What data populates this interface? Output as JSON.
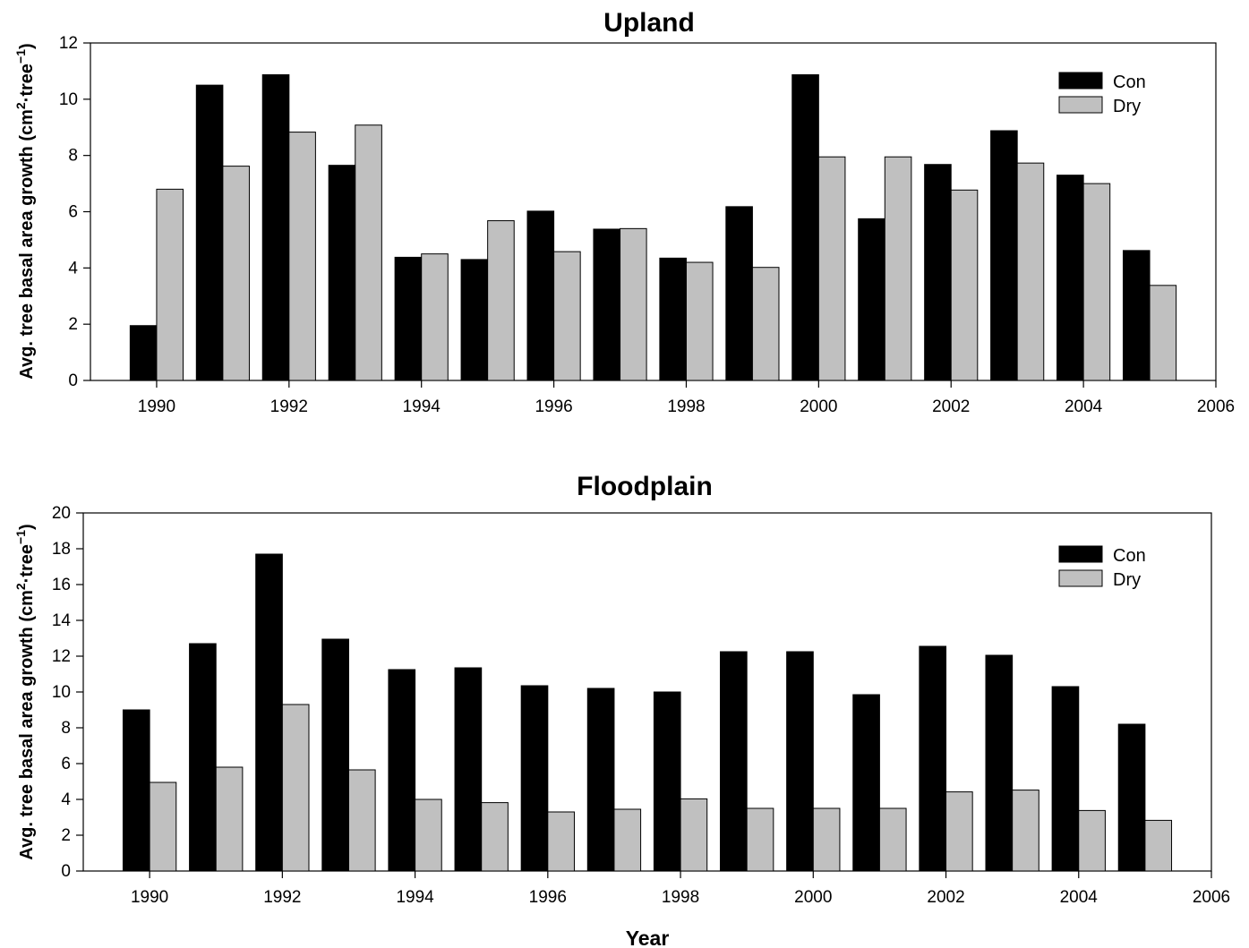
{
  "chart_data": [
    {
      "type": "bar",
      "title": "Upland",
      "ylabel_main": "Avg. tree basal area growth (cm",
      "ylabel_sup1": "2",
      "ylabel_mid": "·tree",
      "ylabel_sup2": "−1",
      "ylabel_end": ")",
      "xlabel": "",
      "categories": [
        1990,
        1991,
        1992,
        1993,
        1994,
        1995,
        1996,
        1997,
        1998,
        1999,
        2000,
        2001,
        2002,
        2003,
        2004,
        2005
      ],
      "series": [
        {
          "name": "Con",
          "color": "#000000",
          "values": [
            1.95,
            10.5,
            10.87,
            7.65,
            4.38,
            4.3,
            6.02,
            5.38,
            4.35,
            6.18,
            10.87,
            5.75,
            7.68,
            8.88,
            7.3,
            4.62
          ]
        },
        {
          "name": "Dry",
          "color": "#c0c0c0",
          "values": [
            6.8,
            7.62,
            8.83,
            9.08,
            4.5,
            5.68,
            4.58,
            5.4,
            4.2,
            4.02,
            7.95,
            7.95,
            6.77,
            7.73,
            7.0,
            3.38
          ]
        }
      ],
      "xlim": [
        1989,
        2006
      ],
      "ylim": [
        0,
        12
      ],
      "xticks": [
        "1990",
        "1992",
        "1994",
        "1996",
        "1998",
        "2000",
        "2002",
        "2004",
        "2006"
      ],
      "yticks": [
        "0",
        "2",
        "4",
        "6",
        "8",
        "10",
        "12"
      ],
      "legend": "top-right",
      "grid": false
    },
    {
      "type": "bar",
      "title": "Floodplain",
      "ylabel_main": "Avg. tree basal area growth (cm",
      "ylabel_sup1": "2",
      "ylabel_mid": "·tree",
      "ylabel_sup2": "−1",
      "ylabel_end": ")",
      "xlabel": "Year",
      "categories": [
        1990,
        1991,
        1992,
        1993,
        1994,
        1995,
        1996,
        1997,
        1998,
        1999,
        2000,
        2001,
        2002,
        2003,
        2004,
        2005
      ],
      "series": [
        {
          "name": "Con",
          "color": "#000000",
          "values": [
            9.0,
            12.7,
            17.7,
            12.95,
            11.25,
            11.35,
            10.35,
            10.2,
            10.0,
            12.25,
            12.25,
            9.85,
            12.55,
            12.05,
            10.3,
            8.2
          ]
        },
        {
          "name": "Dry",
          "color": "#c0c0c0",
          "values": [
            4.95,
            5.8,
            9.3,
            5.65,
            4.0,
            3.82,
            3.3,
            3.45,
            4.03,
            3.5,
            3.5,
            3.5,
            4.42,
            4.52,
            3.38,
            2.83
          ]
        }
      ],
      "xlim": [
        1989,
        2006
      ],
      "ylim": [
        0,
        20
      ],
      "xticks": [
        "1990",
        "1992",
        "1994",
        "1996",
        "1998",
        "2000",
        "2002",
        "2004",
        "2006"
      ],
      "yticks": [
        "0",
        "2",
        "4",
        "6",
        "8",
        "10",
        "12",
        "14",
        "16",
        "18",
        "20"
      ],
      "legend": "top-right",
      "grid": false
    }
  ]
}
